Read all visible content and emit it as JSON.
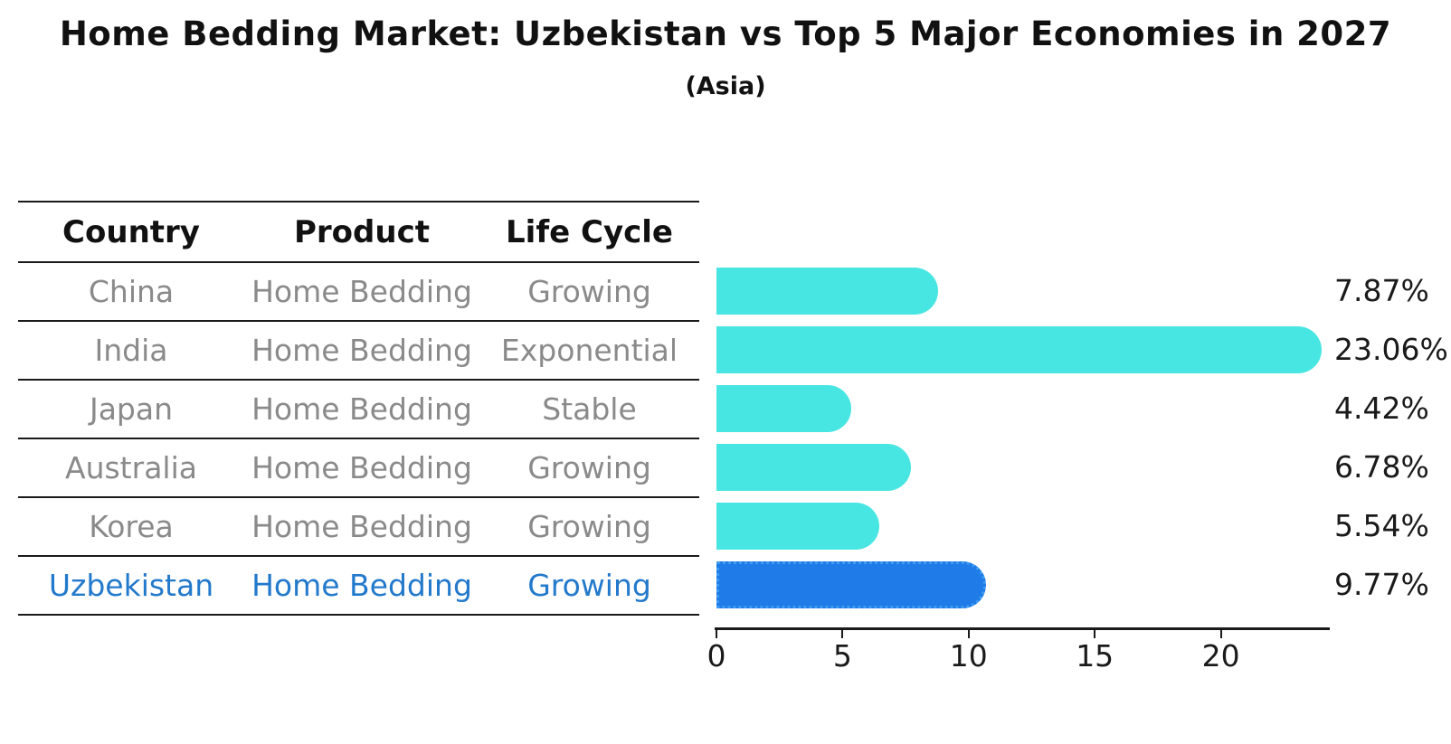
{
  "title": "Home Bedding Market: Uzbekistan vs Top 5 Major Economies in 2027",
  "subtitle": "(Asia)",
  "colors": {
    "bar": "#48e6e2",
    "highlight_bar": "#1e7be8",
    "highlight_bar_border": "#3e9bf0",
    "row_text": "#8a8a8a",
    "highlight_text": "#2379cb",
    "axis": "#1a1a1a"
  },
  "table": {
    "headers": [
      "Country",
      "Product",
      "Life Cycle"
    ],
    "rows": [
      {
        "country": "China",
        "product": "Home Bedding",
        "life_cycle": "Growing"
      },
      {
        "country": "India",
        "product": "Home Bedding",
        "life_cycle": "Exponential"
      },
      {
        "country": "Japan",
        "product": "Home Bedding",
        "life_cycle": "Stable"
      },
      {
        "country": "Australia",
        "product": "Home Bedding",
        "life_cycle": "Growing"
      },
      {
        "country": "Korea",
        "product": "Home Bedding",
        "life_cycle": "Growing"
      },
      {
        "country": "Uzbekistan",
        "product": "Home Bedding",
        "life_cycle": "Growing"
      }
    ],
    "highlight_row": "Uzbekistan"
  },
  "chart_data": {
    "type": "bar",
    "orientation": "horizontal",
    "title": "Home Bedding Market: Uzbekistan vs Top 5 Major Economies in 2027",
    "subtitle": "(Asia)",
    "categories": [
      "China",
      "India",
      "Japan",
      "Australia",
      "Korea",
      "Uzbekistan"
    ],
    "values": [
      7.87,
      23.06,
      4.42,
      6.78,
      5.54,
      9.77
    ],
    "value_labels": [
      "7.87%",
      "23.06%",
      "4.42%",
      "6.78%",
      "5.54%",
      "9.77%"
    ],
    "highlight_index": 5,
    "xlim": [
      0,
      24.3
    ],
    "xticks": [
      0,
      5,
      10,
      15,
      20
    ],
    "grid": false,
    "legend": false
  }
}
